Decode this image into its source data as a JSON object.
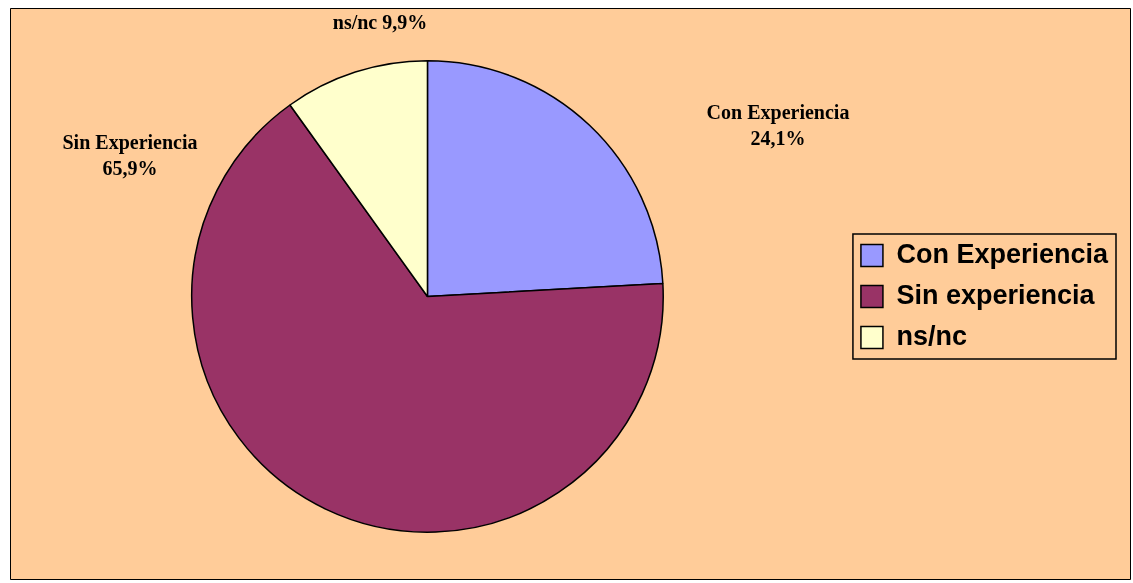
{
  "chart_data": {
    "type": "pie",
    "categories": [
      "Con Experiencia",
      "Sin experiencia",
      "ns/nc"
    ],
    "values": [
      24.1,
      65.9,
      9.9
    ],
    "colors": [
      "#9999ff",
      "#993366",
      "#ffffcc"
    ],
    "value_labels": [
      "Con Experiencia\n24,1%",
      "Sin Experiencia\n65,9%",
      "ns/nc 9,9%"
    ],
    "legend": "right"
  }
}
